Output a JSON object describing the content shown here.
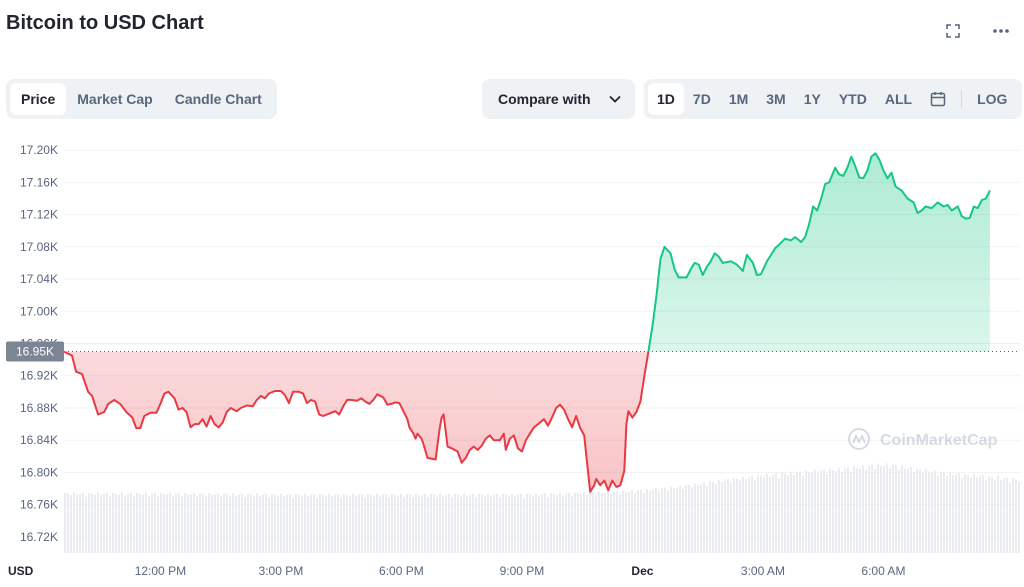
{
  "header": {
    "title": "Bitcoin to USD Chart"
  },
  "icons": {
    "fullscreen": "fullscreen-icon",
    "more": "more-icon",
    "calendar": "calendar-icon",
    "chevron": "chevron-down-icon",
    "watermark": "coinmarketcap-logo-icon"
  },
  "tabs": [
    {
      "label": "Price",
      "active": true
    },
    {
      "label": "Market Cap",
      "active": false
    },
    {
      "label": "Candle Chart",
      "active": false
    }
  ],
  "compare": {
    "label": "Compare with"
  },
  "ranges": [
    {
      "label": "1D",
      "active": true
    },
    {
      "label": "7D",
      "active": false
    },
    {
      "label": "1M",
      "active": false
    },
    {
      "label": "3M",
      "active": false
    },
    {
      "label": "1Y",
      "active": false
    },
    {
      "label": "YTD",
      "active": false
    },
    {
      "label": "ALL",
      "active": false
    }
  ],
  "log_label": "LOG",
  "watermark_text": "CoinMarketCap",
  "colors": {
    "up": "#16c784",
    "down": "#ea3943",
    "baseline": "#58667e"
  },
  "chart_data": {
    "type": "area",
    "title": "",
    "currency_label": "USD",
    "baseline": {
      "value": 16.95,
      "label": "16.95K"
    },
    "ylim": [
      16.7,
      17.22
    ],
    "y_ticks": [
      {
        "v": 17.2,
        "label": "17.20K"
      },
      {
        "v": 17.16,
        "label": "17.16K"
      },
      {
        "v": 17.12,
        "label": "17.12K"
      },
      {
        "v": 17.08,
        "label": "17.08K"
      },
      {
        "v": 17.04,
        "label": "17.04K"
      },
      {
        "v": 17.0,
        "label": "17.00K"
      },
      {
        "v": 16.96,
        "label": "16.96K"
      },
      {
        "v": 16.92,
        "label": "16.92K"
      },
      {
        "v": 16.88,
        "label": "16.88K"
      },
      {
        "v": 16.84,
        "label": "16.84K"
      },
      {
        "v": 16.8,
        "label": "16.80K"
      },
      {
        "v": 16.76,
        "label": "16.76K"
      },
      {
        "v": 16.72,
        "label": "16.72K"
      }
    ],
    "xlim": [
      9.6,
      33.4
    ],
    "x_ticks": [
      {
        "v": 12,
        "label": "12:00 PM",
        "bold": false
      },
      {
        "v": 15,
        "label": "3:00 PM",
        "bold": false
      },
      {
        "v": 18,
        "label": "6:00 PM",
        "bold": false
      },
      {
        "v": 21,
        "label": "9:00 PM",
        "bold": false
      },
      {
        "v": 24,
        "label": "Dec",
        "bold": true
      },
      {
        "v": 27,
        "label": "3:00 AM",
        "bold": false
      },
      {
        "v": 30,
        "label": "6:00 AM",
        "bold": false
      }
    ],
    "x_unit": "hours",
    "series": [
      {
        "points": [
          [
            9.6,
            16.95
          ],
          [
            9.8,
            16.945
          ],
          [
            9.9,
            16.925
          ],
          [
            10.05,
            16.922
          ],
          [
            10.2,
            16.9
          ],
          [
            10.3,
            16.895
          ],
          [
            10.45,
            16.872
          ],
          [
            10.6,
            16.875
          ],
          [
            10.7,
            16.885
          ],
          [
            10.85,
            16.89
          ],
          [
            11.0,
            16.885
          ],
          [
            11.15,
            16.875
          ],
          [
            11.3,
            16.868
          ],
          [
            11.4,
            16.855
          ],
          [
            11.5,
            16.855
          ],
          [
            11.6,
            16.87
          ],
          [
            11.75,
            16.874
          ],
          [
            11.9,
            16.874
          ],
          [
            12.0,
            16.885
          ],
          [
            12.1,
            16.898
          ],
          [
            12.2,
            16.9
          ],
          [
            12.35,
            16.892
          ],
          [
            12.45,
            16.878
          ],
          [
            12.55,
            16.88
          ],
          [
            12.65,
            16.875
          ],
          [
            12.75,
            16.856
          ],
          [
            12.85,
            16.86
          ],
          [
            12.95,
            16.86
          ],
          [
            13.05,
            16.866
          ],
          [
            13.15,
            16.857
          ],
          [
            13.25,
            16.87
          ],
          [
            13.35,
            16.86
          ],
          [
            13.45,
            16.856
          ],
          [
            13.55,
            16.862
          ],
          [
            13.65,
            16.875
          ],
          [
            13.75,
            16.88
          ],
          [
            13.9,
            16.876
          ],
          [
            14.0,
            16.88
          ],
          [
            14.15,
            16.883
          ],
          [
            14.3,
            16.882
          ],
          [
            14.4,
            16.89
          ],
          [
            14.5,
            16.895
          ],
          [
            14.6,
            16.892
          ],
          [
            14.7,
            16.898
          ],
          [
            14.85,
            16.901
          ],
          [
            15.0,
            16.901
          ],
          [
            15.1,
            16.896
          ],
          [
            15.2,
            16.886
          ],
          [
            15.3,
            16.9
          ],
          [
            15.45,
            16.9
          ],
          [
            15.55,
            16.898
          ],
          [
            15.65,
            16.886
          ],
          [
            15.75,
            16.89
          ],
          [
            15.85,
            16.888
          ],
          [
            15.95,
            16.872
          ],
          [
            16.05,
            16.87
          ],
          [
            16.15,
            16.872
          ],
          [
            16.25,
            16.874
          ],
          [
            16.35,
            16.876
          ],
          [
            16.45,
            16.872
          ],
          [
            16.55,
            16.882
          ],
          [
            16.65,
            16.89
          ],
          [
            16.75,
            16.89
          ],
          [
            16.9,
            16.889
          ],
          [
            17.0,
            16.892
          ],
          [
            17.1,
            16.888
          ],
          [
            17.2,
            16.885
          ],
          [
            17.3,
            16.89
          ],
          [
            17.4,
            16.897
          ],
          [
            17.55,
            16.893
          ],
          [
            17.65,
            16.884
          ],
          [
            17.75,
            16.885
          ],
          [
            17.85,
            16.887
          ],
          [
            17.95,
            16.886
          ],
          [
            18.05,
            16.876
          ],
          [
            18.15,
            16.866
          ],
          [
            18.2,
            16.856
          ],
          [
            18.3,
            16.848
          ],
          [
            18.35,
            16.842
          ],
          [
            18.4,
            16.848
          ],
          [
            18.5,
            16.842
          ],
          [
            18.55,
            16.835
          ],
          [
            18.65,
            16.818
          ],
          [
            18.85,
            16.816
          ],
          [
            18.95,
            16.854
          ],
          [
            19.0,
            16.868
          ],
          [
            19.05,
            16.872
          ],
          [
            19.15,
            16.832
          ],
          [
            19.25,
            16.83
          ],
          [
            19.4,
            16.826
          ],
          [
            19.5,
            16.812
          ],
          [
            19.6,
            16.818
          ],
          [
            19.7,
            16.828
          ],
          [
            19.8,
            16.832
          ],
          [
            19.9,
            16.828
          ],
          [
            20.0,
            16.833
          ],
          [
            20.1,
            16.842
          ],
          [
            20.2,
            16.846
          ],
          [
            20.3,
            16.84
          ],
          [
            20.45,
            16.84
          ],
          [
            20.55,
            16.848
          ],
          [
            20.6,
            16.828
          ],
          [
            20.7,
            16.842
          ],
          [
            20.8,
            16.846
          ],
          [
            20.9,
            16.83
          ],
          [
            21.0,
            16.826
          ],
          [
            21.1,
            16.84
          ],
          [
            21.2,
            16.848
          ],
          [
            21.3,
            16.856
          ],
          [
            21.45,
            16.862
          ],
          [
            21.55,
            16.866
          ],
          [
            21.65,
            16.858
          ],
          [
            21.75,
            16.868
          ],
          [
            21.85,
            16.88
          ],
          [
            21.95,
            16.884
          ],
          [
            22.05,
            16.878
          ],
          [
            22.15,
            16.866
          ],
          [
            22.25,
            16.856
          ],
          [
            22.35,
            16.87
          ],
          [
            22.45,
            16.855
          ],
          [
            22.55,
            16.846
          ],
          [
            22.6,
            16.822
          ],
          [
            22.7,
            16.776
          ],
          [
            22.8,
            16.784
          ],
          [
            22.85,
            16.792
          ],
          [
            22.95,
            16.784
          ],
          [
            23.05,
            16.79
          ],
          [
            23.15,
            16.778
          ],
          [
            23.25,
            16.79
          ],
          [
            23.35,
            16.782
          ],
          [
            23.45,
            16.784
          ],
          [
            23.55,
            16.802
          ],
          [
            23.6,
            16.86
          ],
          [
            23.65,
            16.876
          ],
          [
            23.75,
            16.868
          ],
          [
            23.85,
            16.875
          ],
          [
            23.95,
            16.888
          ],
          [
            24.05,
            16.92
          ],
          [
            24.15,
            16.95
          ],
          [
            24.25,
            16.982
          ],
          [
            24.35,
            17.02
          ],
          [
            24.45,
            17.065
          ],
          [
            24.55,
            17.08
          ],
          [
            24.7,
            17.072
          ],
          [
            24.8,
            17.052
          ],
          [
            24.9,
            17.042
          ],
          [
            25.1,
            17.042
          ],
          [
            25.2,
            17.052
          ],
          [
            25.3,
            17.06
          ],
          [
            25.4,
            17.058
          ],
          [
            25.5,
            17.045
          ],
          [
            25.6,
            17.055
          ],
          [
            25.7,
            17.062
          ],
          [
            25.8,
            17.072
          ],
          [
            25.9,
            17.068
          ],
          [
            26.0,
            17.06
          ],
          [
            26.2,
            17.062
          ],
          [
            26.35,
            17.058
          ],
          [
            26.5,
            17.05
          ],
          [
            26.6,
            17.07
          ],
          [
            26.75,
            17.06
          ],
          [
            26.85,
            17.045
          ],
          [
            26.95,
            17.046
          ],
          [
            27.1,
            17.062
          ],
          [
            27.2,
            17.07
          ],
          [
            27.3,
            17.078
          ],
          [
            27.45,
            17.085
          ],
          [
            27.55,
            17.09
          ],
          [
            27.7,
            17.088
          ],
          [
            27.8,
            17.092
          ],
          [
            27.95,
            17.086
          ],
          [
            28.05,
            17.092
          ],
          [
            28.15,
            17.108
          ],
          [
            28.25,
            17.13
          ],
          [
            28.35,
            17.125
          ],
          [
            28.45,
            17.14
          ],
          [
            28.55,
            17.158
          ],
          [
            28.65,
            17.16
          ],
          [
            28.8,
            17.178
          ],
          [
            28.9,
            17.17
          ],
          [
            29.0,
            17.168
          ],
          [
            29.1,
            17.178
          ],
          [
            29.2,
            17.192
          ],
          [
            29.3,
            17.18
          ],
          [
            29.4,
            17.166
          ],
          [
            29.5,
            17.165
          ],
          [
            29.6,
            17.175
          ],
          [
            29.7,
            17.192
          ],
          [
            29.8,
            17.196
          ],
          [
            29.9,
            17.188
          ],
          [
            30.0,
            17.175
          ],
          [
            30.1,
            17.165
          ],
          [
            30.2,
            17.172
          ],
          [
            30.3,
            17.155
          ],
          [
            30.45,
            17.15
          ],
          [
            30.6,
            17.14
          ],
          [
            30.75,
            17.135
          ],
          [
            30.85,
            17.122
          ],
          [
            30.95,
            17.125
          ],
          [
            31.05,
            17.13
          ],
          [
            31.2,
            17.128
          ],
          [
            31.35,
            17.135
          ],
          [
            31.5,
            17.13
          ],
          [
            31.6,
            17.132
          ],
          [
            31.7,
            17.125
          ],
          [
            31.85,
            17.13
          ],
          [
            31.95,
            17.118
          ],
          [
            32.05,
            17.115
          ],
          [
            32.15,
            17.116
          ],
          [
            32.25,
            17.13
          ],
          [
            32.35,
            17.128
          ],
          [
            32.45,
            17.138
          ],
          [
            32.55,
            17.14
          ],
          [
            32.65,
            17.15
          ]
        ]
      }
    ],
    "volume": [
      [
        9.6,
        0.55
      ],
      [
        12.0,
        0.55
      ],
      [
        15.0,
        0.54
      ],
      [
        18.0,
        0.54
      ],
      [
        21.0,
        0.54
      ],
      [
        23.0,
        0.56
      ],
      [
        24.0,
        0.58
      ],
      [
        25.0,
        0.62
      ],
      [
        27.0,
        0.72
      ],
      [
        29.0,
        0.78
      ],
      [
        30.0,
        0.82
      ],
      [
        31.5,
        0.74
      ],
      [
        33.4,
        0.68
      ]
    ]
  }
}
